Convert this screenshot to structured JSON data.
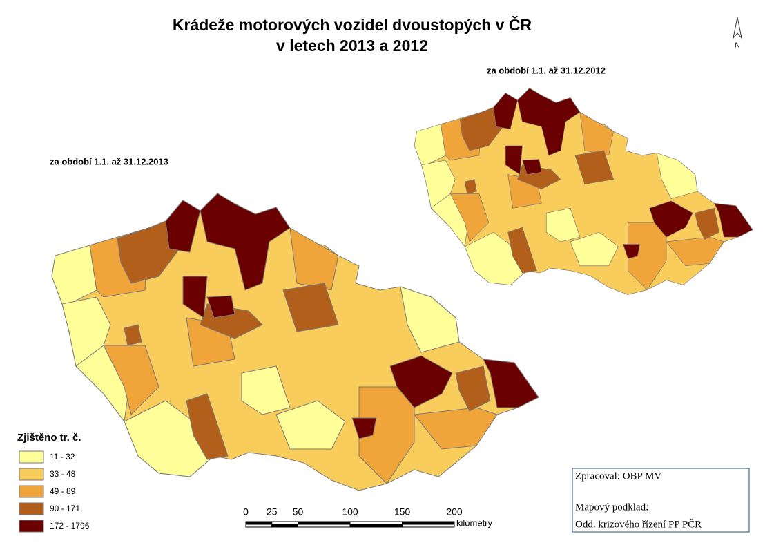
{
  "title": [
    "Krádeže motorových vozidel dvoustopých v ČR",
    "v letech 2013 a 2012"
  ],
  "north": "N",
  "maps": [
    {
      "subtitle": "za období 1.1. až  31.12.2013"
    },
    {
      "subtitle": "za období 1.1. až  31.12.2012"
    }
  ],
  "legend": {
    "title": "Zjištěno tr. č.",
    "items": [
      {
        "label": "11 - 32",
        "color": "#ffff99"
      },
      {
        "label": "33 - 48",
        "color": "#f9cd5c"
      },
      {
        "label": "49 - 89",
        "color": "#f0a53a"
      },
      {
        "label": "90 - 171",
        "color": "#b35f1c"
      },
      {
        "label": "172 - 1796",
        "color": "#6b0000"
      }
    ]
  },
  "scale": {
    "ticks": [
      0,
      25,
      50,
      100,
      150,
      200
    ],
    "unit": "kilometry"
  },
  "credits": [
    "Zpracoval: OBP MV",
    "Mapový podklad:",
    "Odd. krizového řízení PP PČR"
  ]
}
